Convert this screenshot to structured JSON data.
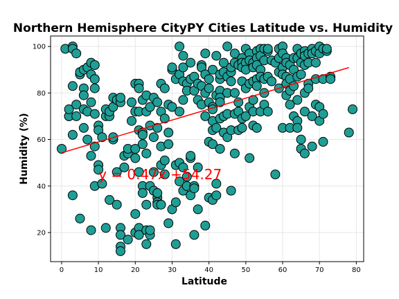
{
  "chart_data": {
    "type": "scatter",
    "title": "Northern Hemisphere CityPY Cities Latitude vs. Humidity",
    "xlabel": "Latitude",
    "ylabel": "Humidity (%)",
    "xlim": [
      -3,
      82
    ],
    "ylim": [
      7.5,
      104.5
    ],
    "xticks": [
      0,
      10,
      20,
      30,
      40,
      50,
      60,
      70,
      80
    ],
    "yticks": [
      20,
      40,
      60,
      80,
      100
    ],
    "grid": true,
    "marker_color": "#1f9e96",
    "marker_edge_color": "#000000",
    "regression": {
      "slope": 0.47,
      "intercept": 54.27,
      "x_range": [
        0,
        78
      ],
      "color": "#ff0000",
      "equation": "y = 0.47x +54.27",
      "label_x": 10,
      "label_y": 45
    },
    "points": [
      [
        0,
        56
      ],
      [
        1,
        99
      ],
      [
        2,
        70
      ],
      [
        2,
        70
      ],
      [
        2,
        73
      ],
      [
        3,
        100
      ],
      [
        3,
        99
      ],
      [
        3,
        62
      ],
      [
        3,
        83
      ],
      [
        3,
        36
      ],
      [
        4,
        97
      ],
      [
        4,
        75
      ],
      [
        4,
        70
      ],
      [
        5,
        88
      ],
      [
        5,
        89
      ],
      [
        5,
        26
      ],
      [
        6,
        90
      ],
      [
        6,
        82
      ],
      [
        6,
        79
      ],
      [
        6,
        73
      ],
      [
        6,
        65
      ],
      [
        7,
        91
      ],
      [
        7,
        72
      ],
      [
        7,
        60
      ],
      [
        8,
        93
      ],
      [
        8,
        88
      ],
      [
        8,
        76
      ],
      [
        8,
        53
      ],
      [
        8,
        21
      ],
      [
        9,
        92
      ],
      [
        9,
        86
      ],
      [
        9,
        82
      ],
      [
        9,
        71
      ],
      [
        9,
        57
      ],
      [
        9,
        40
      ],
      [
        10,
        66
      ],
      [
        10,
        64
      ],
      [
        10,
        49
      ],
      [
        10,
        47
      ],
      [
        11,
        61
      ],
      [
        11,
        41
      ],
      [
        12,
        70
      ],
      [
        12,
        73
      ],
      [
        12,
        22
      ],
      [
        13,
        70
      ],
      [
        13,
        72
      ],
      [
        13,
        34
      ],
      [
        14,
        74
      ],
      [
        14,
        78
      ],
      [
        14,
        60
      ],
      [
        14,
        61
      ],
      [
        15,
        77
      ],
      [
        15,
        46
      ],
      [
        15,
        32
      ],
      [
        16,
        76
      ],
      [
        16,
        78
      ],
      [
        16,
        22
      ],
      [
        16,
        19
      ],
      [
        16,
        14
      ],
      [
        16,
        12
      ],
      [
        17,
        53
      ],
      [
        17,
        48
      ],
      [
        18,
        54
      ],
      [
        18,
        56
      ],
      [
        18,
        17
      ],
      [
        19,
        76
      ],
      [
        19,
        68
      ],
      [
        20,
        84
      ],
      [
        20,
        72
      ],
      [
        20,
        56
      ],
      [
        20,
        52
      ],
      [
        20,
        20
      ],
      [
        20,
        28
      ],
      [
        21,
        84
      ],
      [
        21,
        82
      ],
      [
        21,
        72
      ],
      [
        21,
        64
      ],
      [
        21,
        46
      ],
      [
        21,
        22
      ],
      [
        21,
        19
      ],
      [
        22,
        77
      ],
      [
        22,
        63
      ],
      [
        22,
        62
      ],
      [
        22,
        58
      ],
      [
        22,
        40
      ],
      [
        22,
        37
      ],
      [
        23,
        79
      ],
      [
        23,
        72
      ],
      [
        23,
        54
      ],
      [
        23,
        21
      ],
      [
        23,
        32
      ],
      [
        23,
        15
      ],
      [
        24,
        74
      ],
      [
        24,
        66
      ],
      [
        24,
        40
      ],
      [
        24,
        19
      ],
      [
        24,
        21
      ],
      [
        25,
        78
      ],
      [
        25,
        61
      ],
      [
        25,
        46
      ],
      [
        25,
        38
      ],
      [
        26,
        76
      ],
      [
        26,
        65
      ],
      [
        26,
        35
      ],
      [
        26,
        33
      ],
      [
        26,
        32
      ],
      [
        26,
        37
      ],
      [
        27,
        84
      ],
      [
        27,
        72
      ],
      [
        27,
        57
      ],
      [
        27,
        49
      ],
      [
        27,
        32
      ],
      [
        28,
        82
      ],
      [
        28,
        69
      ],
      [
        28,
        51
      ],
      [
        28,
        45
      ],
      [
        29,
        75
      ],
      [
        29,
        63
      ],
      [
        29,
        58
      ],
      [
        29,
        24
      ],
      [
        30,
        90
      ],
      [
        30,
        91
      ],
      [
        30,
        74
      ],
      [
        30,
        30
      ],
      [
        31,
        86
      ],
      [
        31,
        15
      ],
      [
        31,
        33
      ],
      [
        31,
        49
      ],
      [
        32,
        100
      ],
      [
        32,
        88
      ],
      [
        32,
        72
      ],
      [
        32,
        50
      ],
      [
        32,
        42
      ],
      [
        33,
        77
      ],
      [
        33,
        91
      ],
      [
        33,
        85
      ],
      [
        33,
        96
      ],
      [
        33,
        48
      ],
      [
        33,
        38
      ],
      [
        34,
        84
      ],
      [
        34,
        81
      ],
      [
        34,
        44
      ],
      [
        34,
        40
      ],
      [
        35,
        93
      ],
      [
        35,
        86
      ],
      [
        35,
        52
      ],
      [
        35,
        53
      ],
      [
        35,
        36
      ],
      [
        36,
        87
      ],
      [
        36,
        81
      ],
      [
        36,
        40
      ],
      [
        36,
        39
      ],
      [
        36,
        19
      ],
      [
        37,
        84
      ],
      [
        37,
        77
      ],
      [
        37,
        30
      ],
      [
        37,
        48
      ],
      [
        38,
        75
      ],
      [
        38,
        92
      ],
      [
        38,
        83
      ],
      [
        38,
        91
      ],
      [
        39,
        88
      ],
      [
        39,
        97
      ],
      [
        39,
        80
      ],
      [
        39,
        70
      ],
      [
        39,
        23
      ],
      [
        40,
        86
      ],
      [
        40,
        76
      ],
      [
        40,
        82
      ],
      [
        40,
        59
      ],
      [
        40,
        35
      ],
      [
        41,
        90
      ],
      [
        41,
        74
      ],
      [
        41,
        73
      ],
      [
        41,
        68
      ],
      [
        41,
        64
      ],
      [
        41,
        58
      ],
      [
        41,
        34
      ],
      [
        42,
        96
      ],
      [
        42,
        79
      ],
      [
        42,
        41
      ],
      [
        42,
        36
      ],
      [
        42,
        65
      ],
      [
        43,
        86
      ],
      [
        43,
        88
      ],
      [
        43,
        81
      ],
      [
        43,
        78
      ],
      [
        43,
        76
      ],
      [
        43,
        69
      ],
      [
        43,
        56
      ],
      [
        44,
        93
      ],
      [
        44,
        89
      ],
      [
        44,
        70
      ],
      [
        44,
        63
      ],
      [
        45,
        100
      ],
      [
        45,
        87
      ],
      [
        45,
        80
      ],
      [
        45,
        71
      ],
      [
        45,
        61
      ],
      [
        46,
        89
      ],
      [
        46,
        91
      ],
      [
        46,
        85
      ],
      [
        46,
        64
      ],
      [
        46,
        38
      ],
      [
        47,
        97
      ],
      [
        47,
        93
      ],
      [
        47,
        80
      ],
      [
        47,
        71
      ],
      [
        47,
        54
      ],
      [
        48,
        92
      ],
      [
        48,
        76
      ],
      [
        48,
        72
      ],
      [
        48,
        64
      ],
      [
        49,
        95
      ],
      [
        49,
        93
      ],
      [
        49,
        91
      ],
      [
        49,
        85
      ],
      [
        49,
        69
      ],
      [
        49,
        65
      ],
      [
        50,
        99
      ],
      [
        50,
        93
      ],
      [
        50,
        90
      ],
      [
        50,
        82
      ],
      [
        50,
        70
      ],
      [
        51,
        97
      ],
      [
        51,
        94
      ],
      [
        51,
        84
      ],
      [
        51,
        74
      ],
      [
        51,
        52
      ],
      [
        52,
        93
      ],
      [
        52,
        91
      ],
      [
        52,
        85
      ],
      [
        52,
        77
      ],
      [
        52,
        72
      ],
      [
        52,
        66
      ],
      [
        53,
        98
      ],
      [
        53,
        95
      ],
      [
        53,
        92
      ],
      [
        53,
        86
      ],
      [
        53,
        83
      ],
      [
        53,
        65
      ],
      [
        54,
        99
      ],
      [
        54,
        96
      ],
      [
        54,
        90
      ],
      [
        54,
        87
      ],
      [
        54,
        72
      ],
      [
        55,
        99
      ],
      [
        55,
        94
      ],
      [
        55,
        86
      ],
      [
        55,
        80
      ],
      [
        55,
        75
      ],
      [
        56,
        98
      ],
      [
        56,
        87
      ],
      [
        56,
        72
      ],
      [
        56,
        99
      ],
      [
        57,
        94
      ],
      [
        57,
        85
      ],
      [
        58,
        93
      ],
      [
        58,
        45
      ],
      [
        59,
        99
      ],
      [
        59,
        95
      ],
      [
        59,
        89
      ],
      [
        59,
        82
      ],
      [
        60,
        100
      ],
      [
        60,
        91
      ],
      [
        60,
        88
      ],
      [
        60,
        97
      ],
      [
        60,
        65
      ],
      [
        61,
        95
      ],
      [
        61,
        93
      ],
      [
        61,
        87
      ],
      [
        61,
        84
      ],
      [
        61,
        79
      ],
      [
        62,
        92
      ],
      [
        62,
        86
      ],
      [
        62,
        81
      ],
      [
        62,
        75
      ],
      [
        62,
        65
      ],
      [
        63,
        95
      ],
      [
        63,
        90
      ],
      [
        63,
        83
      ],
      [
        63,
        70
      ],
      [
        64,
        99
      ],
      [
        64,
        95
      ],
      [
        64,
        87
      ],
      [
        64,
        77
      ],
      [
        64,
        68
      ],
      [
        64,
        65
      ],
      [
        65,
        97
      ],
      [
        65,
        93
      ],
      [
        65,
        88
      ],
      [
        65,
        60
      ],
      [
        65,
        56
      ],
      [
        66,
        98
      ],
      [
        66,
        96
      ],
      [
        66,
        92
      ],
      [
        66,
        80
      ],
      [
        66,
        72
      ],
      [
        66,
        54
      ],
      [
        67,
        97
      ],
      [
        67,
        93
      ],
      [
        67,
        84
      ],
      [
        67,
        82
      ],
      [
        68,
        99
      ],
      [
        68,
        97
      ],
      [
        68,
        70
      ],
      [
        68,
        57
      ],
      [
        69,
        98
      ],
      [
        69,
        93
      ],
      [
        69,
        86
      ],
      [
        69,
        75
      ],
      [
        70,
        100
      ],
      [
        70,
        97
      ],
      [
        70,
        74
      ],
      [
        70,
        68
      ],
      [
        71,
        99
      ],
      [
        71,
        86
      ],
      [
        71,
        71
      ],
      [
        71,
        59
      ],
      [
        72,
        98
      ],
      [
        72,
        99
      ],
      [
        73,
        87
      ],
      [
        73,
        86
      ],
      [
        78,
        63
      ],
      [
        79,
        73
      ]
    ]
  }
}
